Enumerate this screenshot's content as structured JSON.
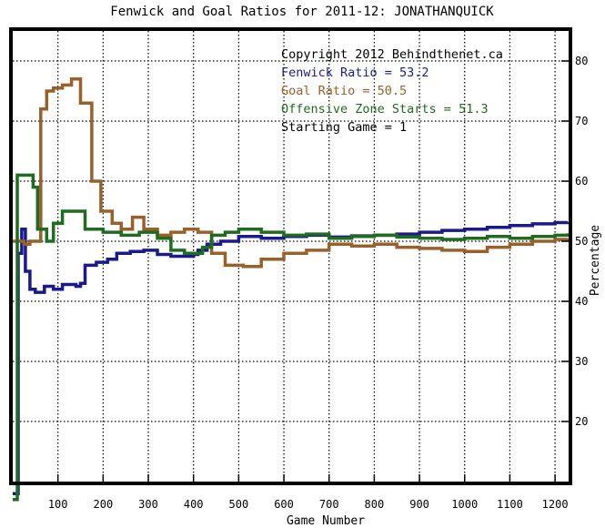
{
  "chart_data": {
    "type": "line",
    "title": "Fenwick and Goal Ratios for 2011-12: JONATHANQUICK",
    "xlabel": "Game Number",
    "ylabel": "Percentage",
    "xlim": [
      0,
      1230
    ],
    "ylim": [
      10,
      85
    ],
    "x_ticks": [
      100,
      200,
      300,
      400,
      500,
      600,
      700,
      800,
      900,
      1000,
      1100,
      1200
    ],
    "y_ticks": [
      20,
      30,
      40,
      50,
      60,
      70,
      80
    ],
    "grid": true,
    "legend_placement": "top-right",
    "annotations": [
      {
        "text": "Copyright 2012 Behindthenet.ca",
        "color": "#000000"
      },
      {
        "text": "Fenwick Ratio = 53.2",
        "color": "#1a1a8c"
      },
      {
        "text": "Goal Ratio = 50.5",
        "color": "#99602a"
      },
      {
        "text": "Offensive Zone Starts = 51.3",
        "color": "#1f6b1f"
      },
      {
        "text": "Starting Game = 1",
        "color": "#000000"
      }
    ],
    "series": [
      {
        "color": "#1a1a8c",
        "points": [
          [
            0,
            8
          ],
          [
            12,
            48
          ],
          [
            20,
            52
          ],
          [
            28,
            45
          ],
          [
            38,
            42
          ],
          [
            50,
            41.5
          ],
          [
            70,
            42.5
          ],
          [
            90,
            42
          ],
          [
            110,
            42.8
          ],
          [
            140,
            42.5
          ],
          [
            150,
            43
          ],
          [
            160,
            46
          ],
          [
            185,
            46.5
          ],
          [
            210,
            47
          ],
          [
            230,
            48
          ],
          [
            260,
            48.3
          ],
          [
            290,
            48.5
          ],
          [
            320,
            47.8
          ],
          [
            350,
            47.5
          ],
          [
            400,
            47.8
          ],
          [
            410,
            48.5
          ],
          [
            430,
            49.5
          ],
          [
            460,
            50
          ],
          [
            500,
            50.8
          ],
          [
            550,
            50.5
          ],
          [
            600,
            50.8
          ],
          [
            650,
            51
          ],
          [
            700,
            50.7
          ],
          [
            750,
            50.9
          ],
          [
            800,
            51
          ],
          [
            850,
            51.2
          ],
          [
            900,
            51.5
          ],
          [
            950,
            51.8
          ],
          [
            1000,
            52
          ],
          [
            1050,
            52.3
          ],
          [
            1100,
            52.6
          ],
          [
            1150,
            52.9
          ],
          [
            1200,
            53.1
          ],
          [
            1228,
            53.2
          ]
        ]
      },
      {
        "color": "#99602a",
        "points": [
          [
            0,
            50
          ],
          [
            25,
            49.5
          ],
          [
            38,
            50
          ],
          [
            52,
            50
          ],
          [
            62,
            72
          ],
          [
            75,
            75
          ],
          [
            90,
            75.5
          ],
          [
            110,
            76
          ],
          [
            130,
            77
          ],
          [
            150,
            73
          ],
          [
            175,
            60
          ],
          [
            195,
            55
          ],
          [
            220,
            53
          ],
          [
            240,
            52
          ],
          [
            265,
            54
          ],
          [
            290,
            52
          ],
          [
            320,
            51
          ],
          [
            350,
            51.5
          ],
          [
            380,
            52
          ],
          [
            410,
            51.5
          ],
          [
            440,
            48
          ],
          [
            470,
            46
          ],
          [
            510,
            45.8
          ],
          [
            550,
            47
          ],
          [
            600,
            48
          ],
          [
            650,
            48.5
          ],
          [
            700,
            49.5
          ],
          [
            750,
            49.2
          ],
          [
            800,
            49.5
          ],
          [
            850,
            49
          ],
          [
            900,
            48.8
          ],
          [
            950,
            48.5
          ],
          [
            1000,
            48.3
          ],
          [
            1050,
            49
          ],
          [
            1100,
            49.5
          ],
          [
            1150,
            50
          ],
          [
            1200,
            50.3
          ],
          [
            1228,
            50.5
          ]
        ]
      },
      {
        "color": "#1f6b1f",
        "points": [
          [
            0,
            7
          ],
          [
            10,
            61
          ],
          [
            20,
            61
          ],
          [
            30,
            61
          ],
          [
            40,
            61
          ],
          [
            45,
            59
          ],
          [
            55,
            52
          ],
          [
            75,
            50
          ],
          [
            90,
            53
          ],
          [
            110,
            55
          ],
          [
            135,
            55
          ],
          [
            160,
            52
          ],
          [
            200,
            51.5
          ],
          [
            240,
            51
          ],
          [
            280,
            51.5
          ],
          [
            320,
            50.5
          ],
          [
            350,
            48.5
          ],
          [
            380,
            48
          ],
          [
            410,
            48
          ],
          [
            420,
            49
          ],
          [
            440,
            51
          ],
          [
            470,
            51.5
          ],
          [
            500,
            52
          ],
          [
            550,
            51.5
          ],
          [
            600,
            51
          ],
          [
            650,
            51.2
          ],
          [
            700,
            50.5
          ],
          [
            750,
            50.8
          ],
          [
            800,
            51
          ],
          [
            850,
            50.7
          ],
          [
            900,
            50.5
          ],
          [
            950,
            50.3
          ],
          [
            1000,
            50.5
          ],
          [
            1050,
            50.8
          ],
          [
            1100,
            50.5
          ],
          [
            1150,
            50.8
          ],
          [
            1200,
            51
          ],
          [
            1228,
            51.3
          ]
        ]
      }
    ]
  }
}
